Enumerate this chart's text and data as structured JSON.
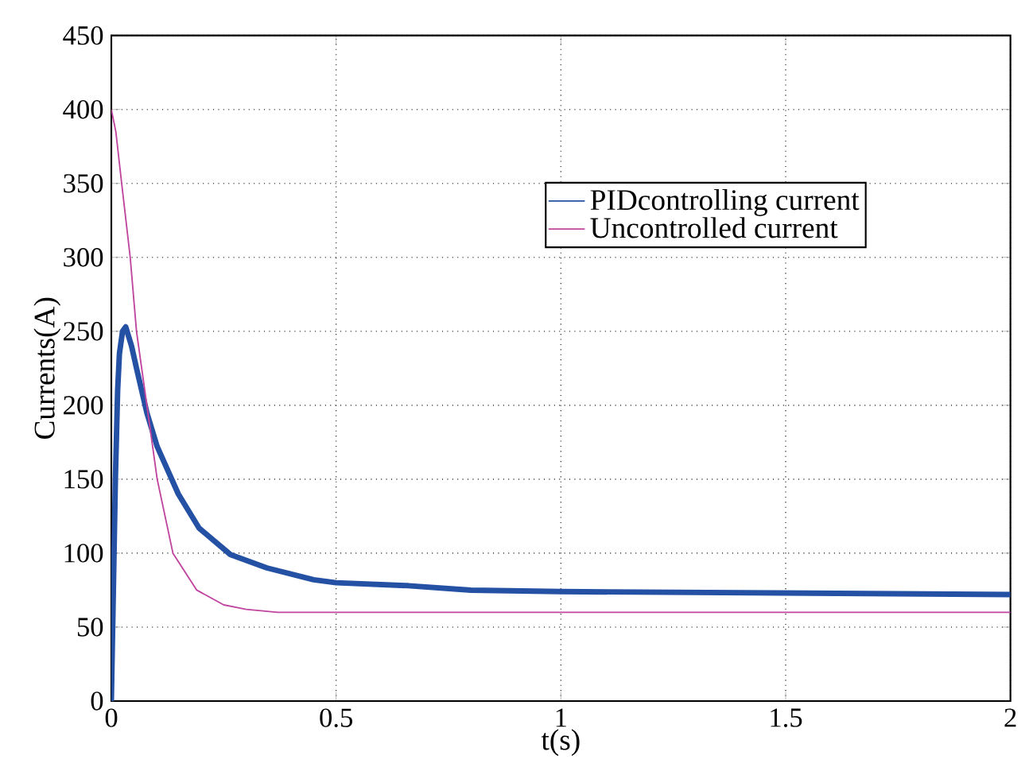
{
  "chart_data": {
    "type": "line",
    "xlabel": "t(s)",
    "ylabel": "Currents(A)",
    "xlim": [
      0,
      2
    ],
    "xticks": [
      0,
      0.5,
      1,
      1.5,
      2
    ],
    "ylim": [
      0,
      450
    ],
    "yticks": [
      0,
      50,
      100,
      150,
      200,
      250,
      300,
      350,
      400,
      450
    ],
    "grid": true,
    "legend": "top right",
    "series": [
      {
        "name": "PIDcontrolling current",
        "color": "#2451a4",
        "x": [
          0,
          0.005,
          0.009,
          0.014,
          0.018,
          0.025,
          0.032,
          0.045,
          0.056,
          0.079,
          0.102,
          0.149,
          0.195,
          0.265,
          0.346,
          0.45,
          0.5,
          0.66,
          0.8,
          1.0,
          1.5,
          2.0
        ],
        "values": [
          0,
          83,
          150,
          210,
          235,
          250,
          253,
          240,
          225,
          195,
          172,
          140,
          117,
          99,
          90,
          82,
          80,
          78,
          75,
          74,
          73,
          72
        ]
      },
      {
        "name": "Uncontrolled current",
        "color": "#c0459f",
        "x": [
          0,
          0.01,
          0.023,
          0.042,
          0.056,
          0.079,
          0.102,
          0.137,
          0.19,
          0.25,
          0.3,
          0.37,
          0.5,
          1.0,
          1.5,
          2.0
        ],
        "values": [
          400,
          385,
          350,
          300,
          250,
          200,
          150,
          100,
          75,
          65,
          62,
          60,
          60,
          60,
          60,
          60
        ]
      }
    ]
  }
}
